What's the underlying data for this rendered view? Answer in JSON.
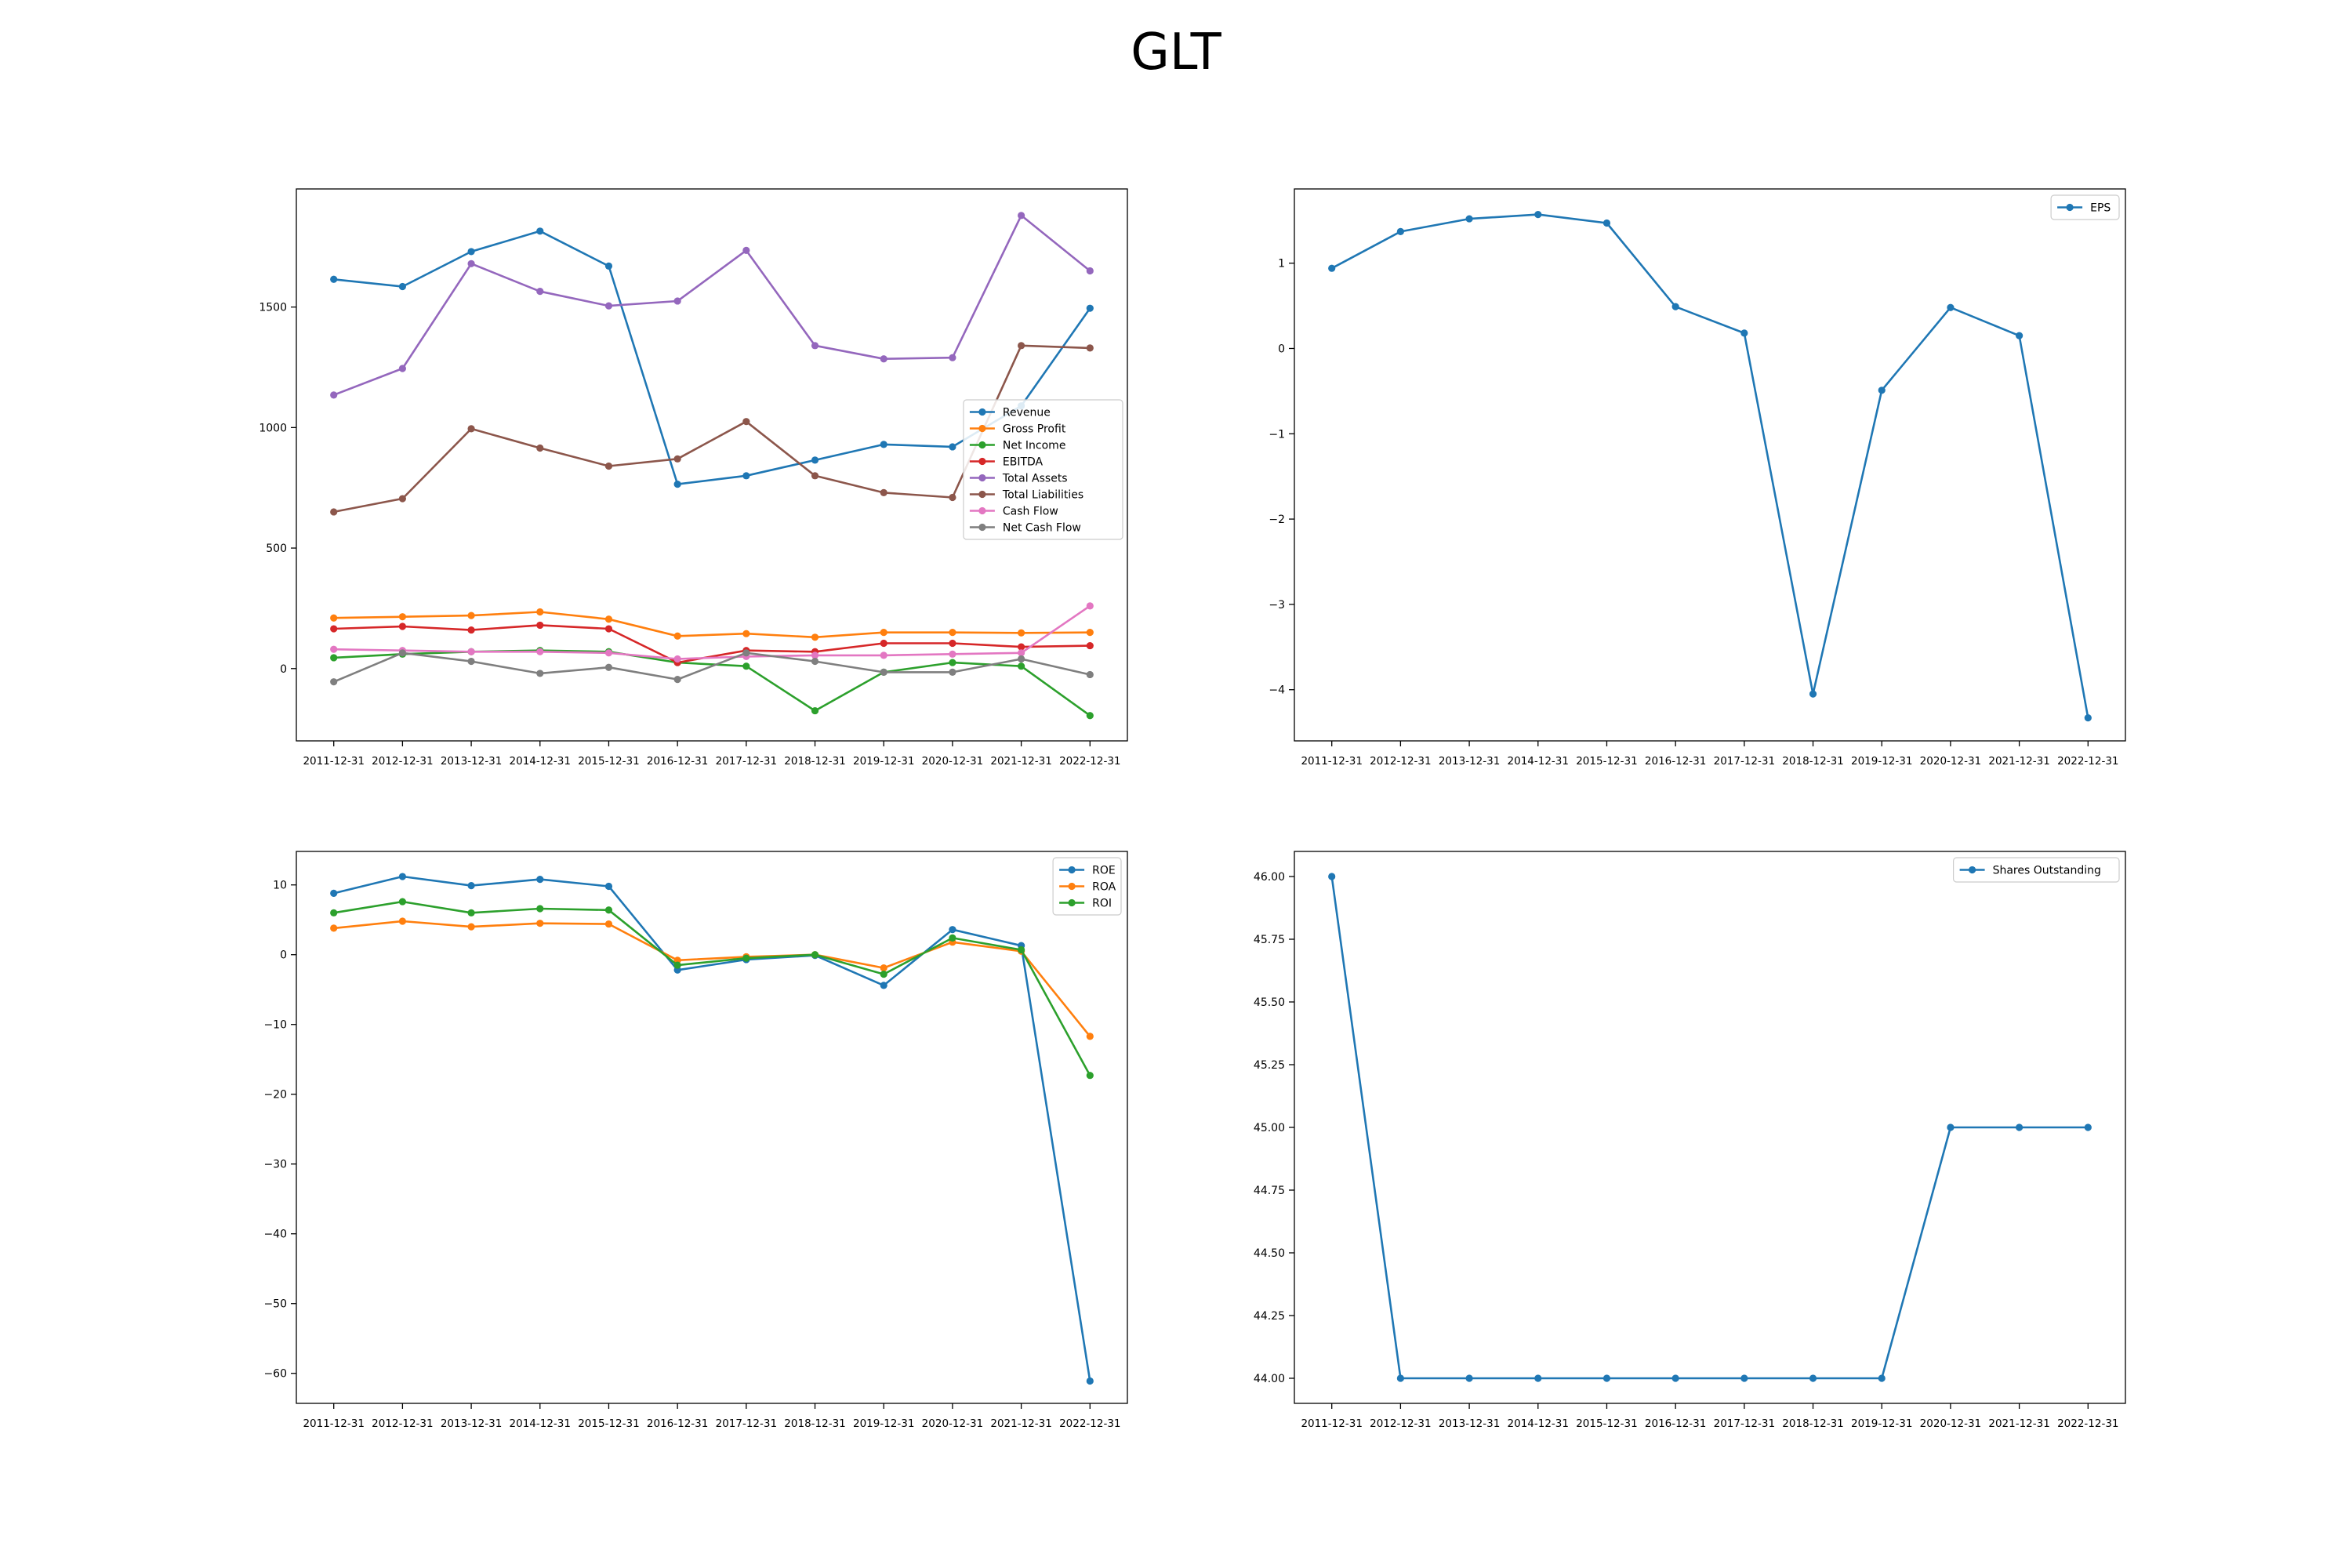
{
  "figure": {
    "title": "GLT"
  },
  "colors": {
    "c0": "#1f77b4",
    "c1": "#ff7f0e",
    "c2": "#2ca02c",
    "c3": "#d62728",
    "c4": "#9467bd",
    "c5": "#8c564b",
    "c6": "#e377c2",
    "c7": "#7f7f7f"
  },
  "chart_data": [
    {
      "type": "line",
      "title": "",
      "xlabel": "",
      "ylabel": "",
      "categories": [
        "2011-12-31",
        "2012-12-31",
        "2013-12-31",
        "2014-12-31",
        "2015-12-31",
        "2016-12-31",
        "2017-12-31",
        "2018-12-31",
        "2019-12-31",
        "2020-12-31",
        "2021-12-31",
        "2022-12-31"
      ],
      "ylim": [
        -300,
        1990
      ],
      "yticks": [
        0,
        500,
        1000,
        1500
      ],
      "yticklabels": [
        "0",
        "500",
        "1000",
        "1500"
      ],
      "grid": false,
      "legend": "center-right",
      "series": [
        {
          "name": "Revenue",
          "color": "#1f77b4",
          "values": [
            1615,
            1585,
            1730,
            1815,
            1670,
            765,
            800,
            865,
            930,
            920,
            1090,
            1495
          ]
        },
        {
          "name": "Gross Profit",
          "color": "#ff7f0e",
          "values": [
            210,
            215,
            220,
            235,
            205,
            135,
            145,
            130,
            150,
            150,
            148,
            150
          ]
        },
        {
          "name": "Net Income",
          "color": "#2ca02c",
          "values": [
            45,
            60,
            70,
            75,
            70,
            25,
            10,
            -175,
            -15,
            25,
            10,
            -195
          ]
        },
        {
          "name": "EBITDA",
          "color": "#d62728",
          "values": [
            165,
            175,
            160,
            180,
            165,
            25,
            75,
            70,
            105,
            105,
            90,
            95
          ]
        },
        {
          "name": "Total Assets",
          "color": "#9467bd",
          "values": [
            1135,
            1245,
            1680,
            1565,
            1505,
            1525,
            1735,
            1340,
            1285,
            1290,
            1880,
            1650
          ]
        },
        {
          "name": "Total Liabilities",
          "color": "#8c564b",
          "values": [
            650,
            705,
            995,
            915,
            840,
            870,
            1025,
            800,
            730,
            710,
            1340,
            1330
          ]
        },
        {
          "name": "Cash Flow",
          "color": "#e377c2",
          "values": [
            80,
            75,
            70,
            70,
            65,
            40,
            50,
            55,
            55,
            60,
            65,
            260
          ]
        },
        {
          "name": "Net Cash Flow",
          "color": "#7f7f7f",
          "values": [
            -55,
            65,
            30,
            -20,
            5,
            -45,
            65,
            30,
            -15,
            -15,
            40,
            -25
          ]
        }
      ]
    },
    {
      "type": "line",
      "title": "",
      "xlabel": "",
      "ylabel": "",
      "categories": [
        "2011-12-31",
        "2012-12-31",
        "2013-12-31",
        "2014-12-31",
        "2015-12-31",
        "2016-12-31",
        "2017-12-31",
        "2018-12-31",
        "2019-12-31",
        "2020-12-31",
        "2021-12-31",
        "2022-12-31"
      ],
      "ylim": [
        -4.6,
        1.87
      ],
      "yticks": [
        -4,
        -3,
        -2,
        -1,
        0,
        1
      ],
      "yticklabels": [
        "−4",
        "−3",
        "−2",
        "−1",
        "0",
        "1"
      ],
      "grid": false,
      "legend": "top-right",
      "series": [
        {
          "name": "EPS",
          "color": "#1f77b4",
          "values": [
            0.94,
            1.37,
            1.52,
            1.57,
            1.47,
            0.49,
            0.18,
            -4.05,
            -0.49,
            0.48,
            0.15,
            -4.33
          ]
        }
      ]
    },
    {
      "type": "line",
      "title": "",
      "xlabel": "",
      "ylabel": "",
      "categories": [
        "2011-12-31",
        "2012-12-31",
        "2013-12-31",
        "2014-12-31",
        "2015-12-31",
        "2016-12-31",
        "2017-12-31",
        "2018-12-31",
        "2019-12-31",
        "2020-12-31",
        "2021-12-31",
        "2022-12-31"
      ],
      "ylim": [
        -64.3,
        14.8
      ],
      "yticks": [
        -60,
        -50,
        -40,
        -30,
        -20,
        -10,
        0,
        10
      ],
      "yticklabels": [
        "−60",
        "−50",
        "−40",
        "−30",
        "−20",
        "−10",
        "0",
        "10"
      ],
      "grid": false,
      "legend": "top-right",
      "series": [
        {
          "name": "ROE",
          "color": "#1f77b4",
          "values": [
            8.8,
            11.2,
            9.9,
            10.8,
            9.8,
            -2.2,
            -0.7,
            -0.1,
            -4.4,
            3.6,
            1.3,
            -61.1
          ]
        },
        {
          "name": "ROA",
          "color": "#ff7f0e",
          "values": [
            3.8,
            4.8,
            4.0,
            4.5,
            4.4,
            -0.8,
            -0.3,
            0.0,
            -1.9,
            1.8,
            0.5,
            -11.7
          ]
        },
        {
          "name": "ROI",
          "color": "#2ca02c",
          "values": [
            6.0,
            7.6,
            6.0,
            6.6,
            6.4,
            -1.5,
            -0.5,
            0.0,
            -2.8,
            2.4,
            0.7,
            -17.3
          ]
        }
      ]
    },
    {
      "type": "line",
      "title": "",
      "xlabel": "",
      "ylabel": "",
      "categories": [
        "2011-12-31",
        "2012-12-31",
        "2013-12-31",
        "2014-12-31",
        "2015-12-31",
        "2016-12-31",
        "2017-12-31",
        "2018-12-31",
        "2019-12-31",
        "2020-12-31",
        "2021-12-31",
        "2022-12-31"
      ],
      "ylim": [
        43.9,
        46.1
      ],
      "yticks": [
        44.0,
        44.25,
        44.5,
        44.75,
        45.0,
        45.25,
        45.5,
        45.75,
        46.0
      ],
      "yticklabels": [
        "44.00",
        "44.25",
        "44.50",
        "44.75",
        "45.00",
        "45.25",
        "45.50",
        "45.75",
        "46.00"
      ],
      "grid": false,
      "legend": "top-right",
      "series": [
        {
          "name": "Shares Outstanding",
          "color": "#1f77b4",
          "values": [
            46,
            44,
            44,
            44,
            44,
            44,
            44,
            44,
            44,
            45,
            45,
            45
          ]
        }
      ]
    }
  ]
}
